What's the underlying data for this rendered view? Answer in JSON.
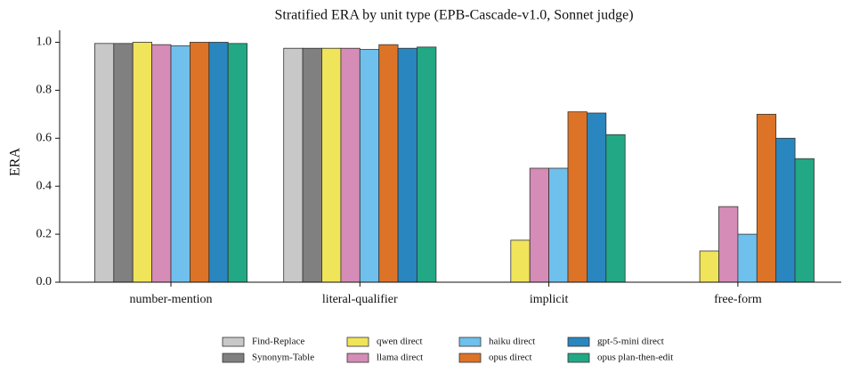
{
  "chart_data": {
    "type": "bar",
    "title": "Stratified ERA by unit type (EPB-Cascade-v1.0, Sonnet judge)",
    "y_label": "ERA",
    "categories": [
      "number-mention",
      "literal-qualifier",
      "implicit",
      "free-form"
    ],
    "series": [
      {
        "name": "Find-Replace",
        "color": "#c8c8c8",
        "values": [
          0.995,
          0.975,
          null,
          null
        ]
      },
      {
        "name": "Synonym-Table",
        "color": "#808080",
        "values": [
          0.995,
          0.975,
          null,
          null
        ]
      },
      {
        "name": "qwen direct",
        "color": "#f0e45a",
        "values": [
          1.0,
          0.975,
          0.175,
          0.13
        ]
      },
      {
        "name": "llama direct",
        "color": "#d58cb6",
        "values": [
          0.99,
          0.975,
          0.475,
          0.315
        ]
      },
      {
        "name": "haiku direct",
        "color": "#6fc0ec",
        "values": [
          0.985,
          0.97,
          0.475,
          0.2
        ]
      },
      {
        "name": "opus direct",
        "color": "#dd7327",
        "values": [
          1.0,
          0.99,
          0.71,
          0.7
        ]
      },
      {
        "name": "gpt-5-mini direct",
        "color": "#2a86bf",
        "values": [
          1.0,
          0.975,
          0.705,
          0.6
        ]
      },
      {
        "name": "opus plan-then-edit",
        "color": "#22a884",
        "values": [
          0.995,
          0.98,
          0.615,
          0.515
        ]
      }
    ],
    "ylim": [
      0,
      1.05
    ],
    "yticks": [
      {
        "value": 0,
        "label": "0.0"
      },
      0.2,
      0.4,
      0.6,
      0.8,
      {
        "value": 1,
        "label": "1.0"
      }
    ],
    "legend": "bottom"
  }
}
